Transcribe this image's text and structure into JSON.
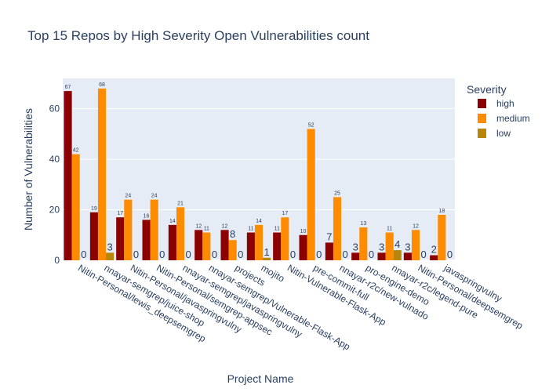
{
  "chart_data": {
    "type": "bar",
    "title": "Top 15 Repos by High Severity Open Vulnerabilities count",
    "xlabel": "Project Name",
    "ylabel": "Number of Vulnerabilities",
    "ylim": [
      0,
      72
    ],
    "yticks": [
      0,
      20,
      40,
      60
    ],
    "grid": true,
    "legend_title": "Severity",
    "legend_position": "right",
    "categories": [
      "Nitin-Personal/lewis_deepsemgrep",
      "nnayar-semgrep/juice-shop",
      "Nitin-Personal/javaspringvulny",
      "Nitin-Personal/semgrep-appsec",
      "nnayar-semgrep/javaspringvulny",
      "nnayar-semgrep/Vulnerable-Flask-App",
      "projects",
      "mojito",
      "Nitin-Vulnerable-Flask-App",
      "pre-commit-full",
      "nnayar-r2c/new-vulnado",
      "pro-engine-demo",
      "nnayar-r2c/legend-pure",
      "Nitin-Personal/deepsemgrep",
      "javaspringvulny"
    ],
    "series": [
      {
        "name": "high",
        "color": "#8b0000",
        "values": [
          67,
          19,
          17,
          16,
          14,
          12,
          12,
          11,
          11,
          10,
          7,
          3,
          3,
          3,
          2
        ]
      },
      {
        "name": "medium",
        "color": "#ff8c00",
        "values": [
          42,
          68,
          24,
          24,
          21,
          11,
          8,
          14,
          17,
          52,
          25,
          13,
          11,
          12,
          18
        ]
      },
      {
        "name": "low",
        "color": "#b8860b",
        "values": [
          0,
          3,
          0,
          0,
          0,
          0,
          0,
          1,
          0,
          0,
          0,
          0,
          4,
          0,
          0
        ]
      }
    ]
  }
}
